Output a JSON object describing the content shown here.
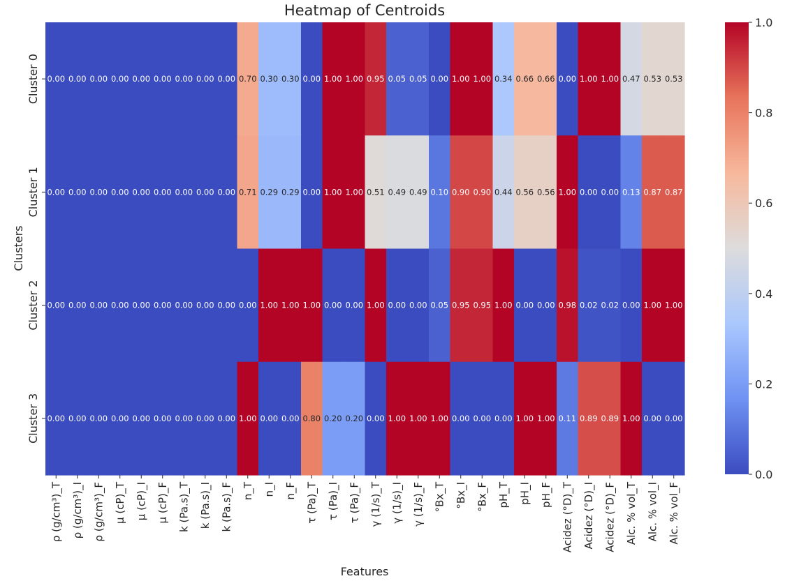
{
  "chart_data": {
    "type": "heatmap",
    "title": "Heatmap of Centroids",
    "xlabel": "Features",
    "ylabel": "Clusters",
    "x_categories": [
      "ρ (g/cm³)_T",
      "ρ (g/cm³)_I",
      "ρ (g/cm³)_F",
      "μ (cP)_T",
      "μ (cP)_I",
      "μ (cP)_F",
      "k (Pa.s)_T",
      "k (Pa.s)_I",
      "k (Pa.s)_F",
      "n_T",
      "n_I",
      "n_F",
      "τ (Pa)_T",
      "τ (Pa)_I",
      "τ (Pa)_F",
      "γ (1/s)_T",
      "γ (1/s)_I",
      "γ (1/s)_F",
      "°Bx_T",
      "°Bx_I",
      "°Bx_F",
      "pH_T",
      "pH_I",
      "pH_F",
      "Acidez (°D)_T",
      "Acidez (°D)_I",
      "Acidez (°D)_F",
      "Alc. % vol_T",
      "Alc. % vol_I",
      "Alc. % vol_F"
    ],
    "y_categories": [
      "Cluster 0",
      "Cluster 1",
      "Cluster 2",
      "Cluster 3"
    ],
    "values": [
      [
        0.0,
        0.0,
        0.0,
        0.0,
        0.0,
        0.0,
        0.0,
        0.0,
        0.0,
        0.7,
        0.3,
        0.3,
        0.0,
        1.0,
        1.0,
        0.95,
        0.05,
        0.05,
        0.0,
        1.0,
        1.0,
        0.34,
        0.66,
        0.66,
        0.0,
        1.0,
        1.0,
        0.47,
        0.53,
        0.53
      ],
      [
        0.0,
        0.0,
        0.0,
        0.0,
        0.0,
        0.0,
        0.0,
        0.0,
        0.0,
        0.71,
        0.29,
        0.29,
        0.0,
        1.0,
        1.0,
        0.51,
        0.49,
        0.49,
        0.1,
        0.9,
        0.9,
        0.44,
        0.56,
        0.56,
        1.0,
        0.0,
        0.0,
        0.13,
        0.87,
        0.87
      ],
      [
        0.0,
        0.0,
        0.0,
        0.0,
        0.0,
        0.0,
        0.0,
        0.0,
        0.0,
        0.0,
        1.0,
        1.0,
        1.0,
        0.0,
        0.0,
        1.0,
        0.0,
        0.0,
        0.05,
        0.95,
        0.95,
        1.0,
        0.0,
        0.0,
        0.98,
        0.02,
        0.02,
        0.0,
        1.0,
        1.0
      ],
      [
        0.0,
        0.0,
        0.0,
        0.0,
        0.0,
        0.0,
        0.0,
        0.0,
        0.0,
        1.0,
        0.0,
        0.0,
        0.8,
        0.2,
        0.2,
        0.0,
        1.0,
        1.0,
        1.0,
        0.0,
        0.0,
        0.0,
        1.0,
        1.0,
        0.11,
        0.89,
        0.89,
        1.0,
        0.0,
        0.0
      ]
    ],
    "value_range": [
      0.0,
      1.0
    ],
    "colormap": "coolwarm",
    "colormap_stops": [
      "#3b4cc0",
      "#6f92f3",
      "#aac7fd",
      "#dddcdc",
      "#f7b89c",
      "#e7745b",
      "#b40426"
    ],
    "colorbar_ticks": [
      "0.0",
      "0.2",
      "0.4",
      "0.6",
      "0.8",
      "1.0"
    ],
    "colorbar_tick_values": [
      0.0,
      0.2,
      0.4,
      0.6,
      0.8,
      1.0
    ],
    "annotation_format": "2 decimals",
    "annotation_colors": {
      "on_dark": "#ffffff",
      "on_light": "#262626"
    },
    "text_color": "#262626",
    "legend": "colorbar right"
  }
}
